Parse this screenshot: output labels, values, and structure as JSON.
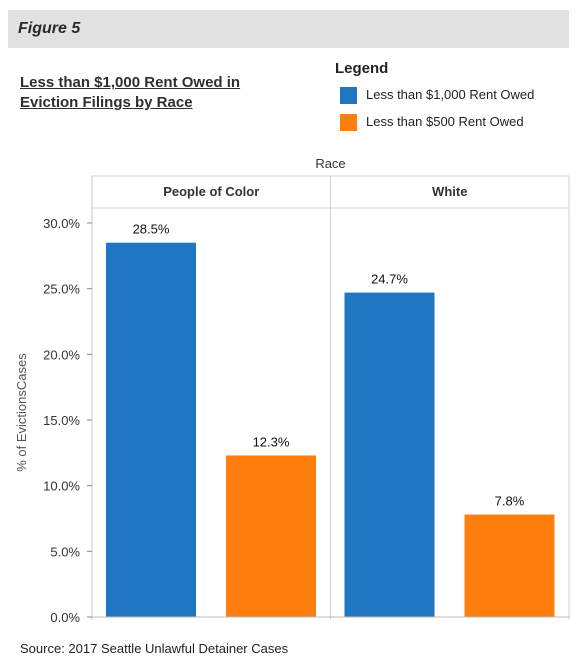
{
  "figure_label": "Figure 5",
  "title_line1": "Less than $1,000 Rent Owed in",
  "title_line2": "Eviction Filings by Race",
  "legend": {
    "title": "Legend",
    "items": [
      {
        "label": "Less than $1,000 Rent Owed",
        "color": "#1f77c3"
      },
      {
        "label": "Less than $500 Rent Owed",
        "color": "#ff7f0e"
      }
    ]
  },
  "source": "Source: 2017 Seattle Unlawful Detainer Cases",
  "chart_data": {
    "type": "bar",
    "title": "Less than $1,000 Rent Owed in Eviction Filings by Race",
    "column_header": "Race",
    "categories": [
      "People of Color",
      "White"
    ],
    "series": [
      {
        "name": "Less than $1,000 Rent Owed",
        "values": [
          28.5,
          24.7
        ],
        "labels": [
          "28.5%",
          "24.7%"
        ],
        "color": "#1f77c3"
      },
      {
        "name": "Less than $500 Rent Owed",
        "values": [
          12.3,
          7.8
        ],
        "labels": [
          "12.3%",
          "7.8%"
        ],
        "color": "#ff7f0e"
      }
    ],
    "ylabel": "% of EvictionsCases",
    "ylim": [
      0,
      30
    ],
    "yticks": [
      0,
      5,
      10,
      15,
      20,
      25,
      30
    ],
    "ytick_labels": [
      "0.0%",
      "5.0%",
      "10.0%",
      "15.0%",
      "20.0%",
      "25.0%",
      "30.0%"
    ],
    "grid": false,
    "legend_position": "top-right"
  }
}
